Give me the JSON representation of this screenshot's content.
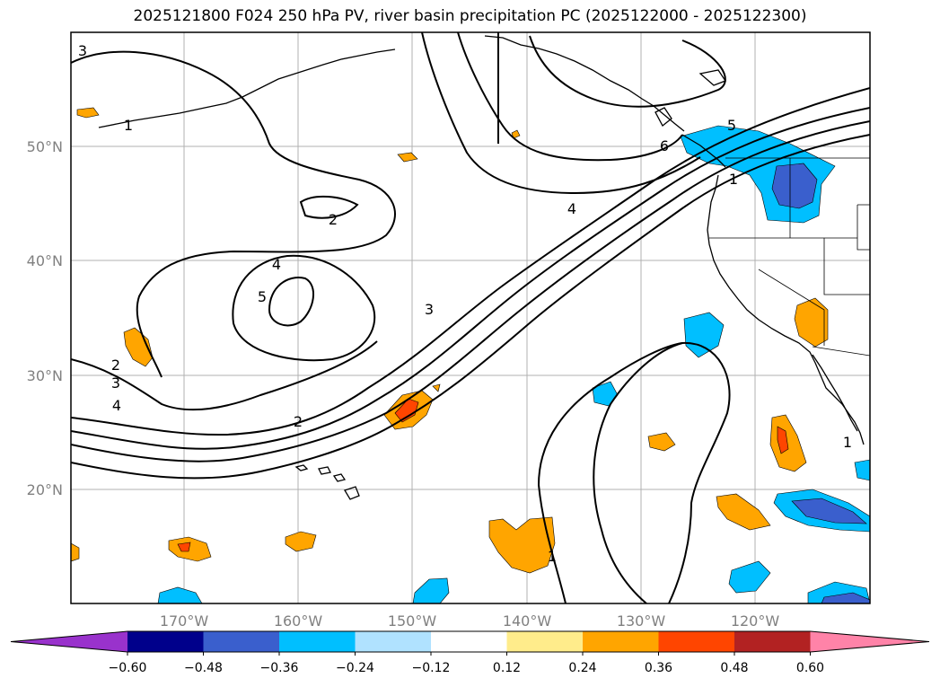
{
  "title": "2025121800 F024 250 hPa PV, river basin precipitation PC (2025122000 - 2025122300)",
  "longitude_labels": [
    "170°W",
    "160°W",
    "150°W",
    "140°W",
    "130°W",
    "120°W"
  ],
  "latitude_labels": [
    "50°N",
    "40°N",
    "30°N",
    "20°N"
  ],
  "contour_labels": [
    "3",
    "1",
    "2",
    "4",
    "5",
    "2",
    "3",
    "4",
    "2",
    "3",
    "4",
    "5",
    "6",
    "1",
    "1",
    "1"
  ],
  "colorbar": {
    "tick_labels": [
      "−0.60",
      "−0.48",
      "−0.36",
      "−0.24",
      "−0.12",
      "0.12",
      "0.24",
      "0.36",
      "0.48",
      "0.60"
    ],
    "colors": [
      "#9932cc",
      "#00008b",
      "#3a5fcd",
      "#00bfff",
      "#b0e2ff",
      "#ffffff",
      "#ffec8b",
      "#ffa500",
      "#ff4500",
      "#b22222",
      "#ff83a8"
    ]
  }
}
